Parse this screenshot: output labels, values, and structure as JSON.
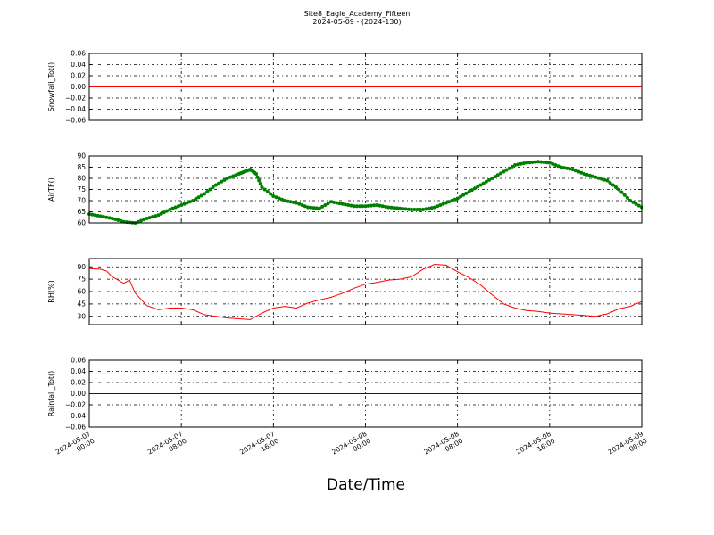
{
  "chart_data": {
    "title": "Site8_Eagle_Academy_Fifteen",
    "subtitle": "2024-05-09 - (2024-130)",
    "xlabel": "Date/Time",
    "x_ticks": [
      "2024-05-07 00:00",
      "2024-05-07 08:00",
      "2024-05-07 16:00",
      "2024-05-08 00:00",
      "2024-05-08 08:00",
      "2024-05-08 16:00",
      "2024-05-09 00:00"
    ],
    "x_range": [
      "2024-05-07 00:00",
      "2024-05-09 00:00"
    ],
    "grid": true,
    "panels": [
      {
        "type": "line",
        "ylabel": "Snowfall_Tot()",
        "ylim": [
          -0.06,
          0.06
        ],
        "yticks": [
          "0.06",
          "0.04",
          "0.02",
          "0.00",
          "−0.02",
          "−0.04",
          "−0.06"
        ],
        "color": "#ff0000",
        "series": [
          {
            "x": [
              "2024-05-07 00:00",
              "2024-05-09 00:00"
            ],
            "y": [
              0,
              0
            ]
          }
        ]
      },
      {
        "type": "line",
        "ylabel": "AirTF()",
        "ylim": [
          60,
          90
        ],
        "yticks": [
          "90",
          "85",
          "80",
          "75",
          "70",
          "65",
          "60"
        ],
        "color": "#008000",
        "markers": true,
        "series": [
          {
            "x": [
              "2024-05-07 00:00",
              "2024-05-07 01:00",
              "2024-05-07 02:00",
              "2024-05-07 03:00",
              "2024-05-07 04:00",
              "2024-05-07 05:00",
              "2024-05-07 06:00",
              "2024-05-07 07:00",
              "2024-05-07 08:00",
              "2024-05-07 09:00",
              "2024-05-07 10:00",
              "2024-05-07 11:00",
              "2024-05-07 12:00",
              "2024-05-07 13:00",
              "2024-05-07 13:30",
              "2024-05-07 14:00",
              "2024-05-07 14:30",
              "2024-05-07 15:00",
              "2024-05-07 16:00",
              "2024-05-07 17:00",
              "2024-05-07 18:00",
              "2024-05-07 19:00",
              "2024-05-07 20:00",
              "2024-05-07 21:00",
              "2024-05-07 22:00",
              "2024-05-07 23:00",
              "2024-05-08 00:00",
              "2024-05-08 01:00",
              "2024-05-08 02:00",
              "2024-05-08 03:00",
              "2024-05-08 04:00",
              "2024-05-08 05:00",
              "2024-05-08 06:00",
              "2024-05-08 07:00",
              "2024-05-08 08:00",
              "2024-05-08 09:00",
              "2024-05-08 10:00",
              "2024-05-08 11:00",
              "2024-05-08 12:00",
              "2024-05-08 13:00",
              "2024-05-08 14:00",
              "2024-05-08 15:00",
              "2024-05-08 16:00",
              "2024-05-08 17:00",
              "2024-05-08 18:00",
              "2024-05-08 19:00",
              "2024-05-08 20:00",
              "2024-05-08 21:00",
              "2024-05-08 22:00",
              "2024-05-08 23:00",
              "2024-05-09 00:00"
            ],
            "y": [
              64,
              63,
              62,
              60.5,
              60,
              62,
              63.5,
              66,
              68,
              70,
              73,
              77,
              80,
              82,
              83,
              84,
              82,
              76,
              72,
              70,
              69,
              67,
              66.5,
              69.5,
              68.5,
              67.5,
              67.5,
              68,
              67,
              66.5,
              66,
              66,
              67,
              69,
              71,
              74,
              77,
              80,
              83,
              86,
              87,
              87.5,
              87,
              85,
              84,
              82,
              80.5,
              79,
              75,
              70,
              67
            ]
          }
        ]
      },
      {
        "type": "line",
        "ylabel": "RH(%)",
        "ylim": [
          20,
          100
        ],
        "yticks": [
          "90",
          "75",
          "60",
          "45",
          "30"
        ],
        "color": "#ff0000",
        "series": [
          {
            "x": [
              "2024-05-07 00:00",
              "2024-05-07 01:00",
              "2024-05-07 01:30",
              "2024-05-07 02:00",
              "2024-05-07 03:00",
              "2024-05-07 03:30",
              "2024-05-07 04:00",
              "2024-05-07 05:00",
              "2024-05-07 06:00",
              "2024-05-07 07:00",
              "2024-05-07 08:00",
              "2024-05-07 09:00",
              "2024-05-07 10:00",
              "2024-05-07 11:00",
              "2024-05-07 12:00",
              "2024-05-07 13:00",
              "2024-05-07 14:00",
              "2024-05-07 15:00",
              "2024-05-07 16:00",
              "2024-05-07 17:00",
              "2024-05-07 18:00",
              "2024-05-07 19:00",
              "2024-05-07 20:00",
              "2024-05-07 21:00",
              "2024-05-07 22:00",
              "2024-05-07 23:00",
              "2024-05-08 00:00",
              "2024-05-08 01:00",
              "2024-05-08 02:00",
              "2024-05-08 03:00",
              "2024-05-08 04:00",
              "2024-05-08 05:00",
              "2024-05-08 06:00",
              "2024-05-08 07:00",
              "2024-05-08 08:00",
              "2024-05-08 09:00",
              "2024-05-08 10:00",
              "2024-05-08 11:00",
              "2024-05-08 12:00",
              "2024-05-08 13:00",
              "2024-05-08 14:00",
              "2024-05-08 15:00",
              "2024-05-08 16:00",
              "2024-05-08 17:00",
              "2024-05-08 18:00",
              "2024-05-08 19:00",
              "2024-05-08 20:00",
              "2024-05-08 21:00",
              "2024-05-08 22:00",
              "2024-05-08 23:00",
              "2024-05-09 00:00"
            ],
            "y": [
              88,
              87,
              85,
              78,
              70,
              74,
              58,
              43,
              38,
              40,
              40,
              38,
              32,
              30,
              28,
              27,
              26,
              34,
              40,
              42,
              40,
              46,
              50,
              53,
              58,
              64,
              69,
              71,
              74,
              75,
              78,
              87,
              93,
              92,
              84,
              77,
              68,
              56,
              45,
              40,
              37,
              36,
              34,
              33,
              32,
              31,
              30,
              33,
              39,
              42,
              48
            ]
          }
        ]
      },
      {
        "type": "line",
        "ylabel": "Rainfall_Tot()",
        "ylim": [
          -0.06,
          0.06
        ],
        "yticks": [
          "0.06",
          "0.04",
          "0.02",
          "0.00",
          "−0.02",
          "−0.04",
          "−0.06"
        ],
        "color": "#0000ff",
        "series": [
          {
            "x": [
              "2024-05-07 00:00",
              "2024-05-09 00:00"
            ],
            "y": [
              0,
              0
            ]
          }
        ]
      }
    ]
  }
}
